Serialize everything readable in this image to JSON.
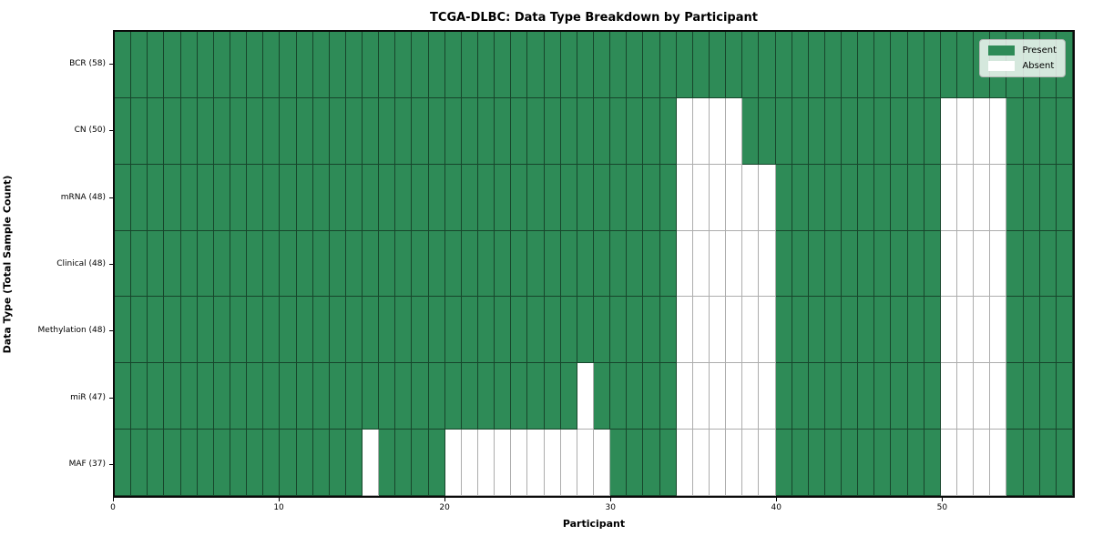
{
  "chart_data": {
    "type": "heatmap",
    "title": "TCGA-DLBC: Data Type Breakdown by Participant",
    "xlabel": "Participant",
    "ylabel": "Data Type (Total Sample Count)",
    "x_range": [
      0,
      58
    ],
    "n_participants": 58,
    "x_ticks": [
      0,
      10,
      20,
      30,
      40,
      50
    ],
    "grid": true,
    "legend_position": "upper right",
    "legend": [
      {
        "label": "Present",
        "color": "#2e8b57"
      },
      {
        "label": "Absent",
        "color": "#ffffff"
      }
    ],
    "colors": {
      "present": "#2e8b57",
      "absent": "#ffffff",
      "cell_border": "rgba(0,0,0,0.5)",
      "frame": "#0a0a0a"
    },
    "rows": [
      {
        "label": "BCR (58)",
        "data_type": "BCR",
        "total_samples": 58,
        "absent_participants": []
      },
      {
        "label": "CN (50)",
        "data_type": "CN",
        "total_samples": 50,
        "absent_participants": [
          34,
          35,
          36,
          37,
          50,
          51,
          52,
          53
        ]
      },
      {
        "label": "mRNA (48)",
        "data_type": "mRNA",
        "total_samples": 48,
        "absent_participants": [
          34,
          35,
          36,
          37,
          38,
          39,
          50,
          51,
          52,
          53
        ]
      },
      {
        "label": "Clinical (48)",
        "data_type": "Clinical",
        "total_samples": 48,
        "absent_participants": [
          34,
          35,
          36,
          37,
          38,
          39,
          50,
          51,
          52,
          53
        ]
      },
      {
        "label": "Methylation (48)",
        "data_type": "Methylation",
        "total_samples": 48,
        "absent_participants": [
          34,
          35,
          36,
          37,
          38,
          39,
          50,
          51,
          52,
          53
        ]
      },
      {
        "label": "miR (47)",
        "data_type": "miR",
        "total_samples": 47,
        "absent_participants": [
          28,
          34,
          35,
          36,
          37,
          38,
          39,
          50,
          51,
          52,
          53
        ]
      },
      {
        "label": "MAF (37)",
        "data_type": "MAF",
        "total_samples": 37,
        "absent_participants": [
          15,
          20,
          21,
          22,
          23,
          24,
          25,
          26,
          27,
          28,
          29,
          34,
          35,
          36,
          37,
          38,
          39,
          50,
          51,
          52,
          53
        ]
      }
    ]
  }
}
